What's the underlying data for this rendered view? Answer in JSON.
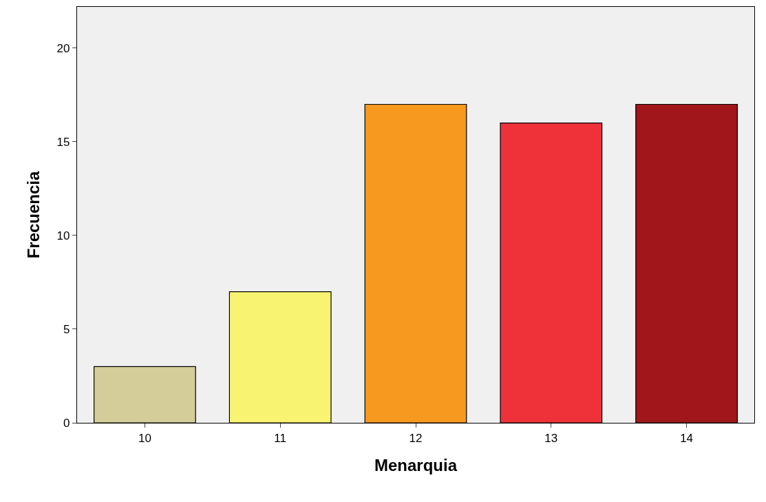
{
  "chart_data": {
    "type": "bar",
    "xlabel": "Menarquia",
    "ylabel": "Frecuencia",
    "categories": [
      "10",
      "11",
      "12",
      "13",
      "14"
    ],
    "values": [
      3,
      7,
      17,
      16,
      17
    ],
    "colors": [
      "#d4cd9a",
      "#f8f471",
      "#f7991f",
      "#ef3239",
      "#a0161a"
    ],
    "ylim": [
      0,
      22.2
    ],
    "yticks": [
      0,
      5,
      10,
      15,
      20
    ],
    "grid": false
  }
}
